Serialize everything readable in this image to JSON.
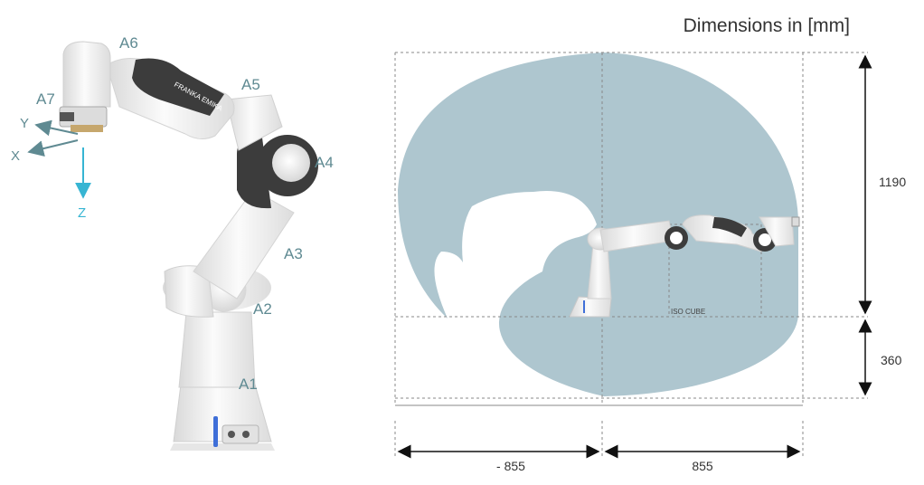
{
  "title": "Dimensions in [mm]",
  "joints": {
    "a1": "A1",
    "a2": "A2",
    "a3": "A3",
    "a4": "A4",
    "a5": "A5",
    "a6": "A6",
    "a7": "A7"
  },
  "frame": {
    "x": "X",
    "y": "Y",
    "z": "Z"
  },
  "arm_brand": "FRANKA EMIKA",
  "iso_cube_label": "ISO CUBE",
  "dimensions": {
    "upper_reach": "1190",
    "lower_reach": "360",
    "left_reach": "- 855",
    "right_reach": "855"
  },
  "colors": {
    "workspace": "#aec6cf",
    "joint_label": "#5f8a92",
    "z_axis": "#37b5d3",
    "robot_dark": "#3c3c3c",
    "robot_light": "#f2f2f2"
  }
}
